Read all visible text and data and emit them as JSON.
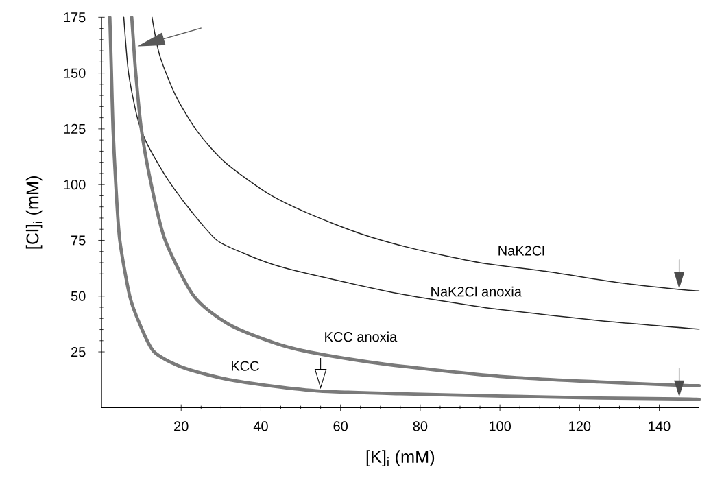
{
  "chart_data": {
    "type": "line",
    "xlabel": "[K]$_{i}$ (mM)",
    "ylabel": "[Cl]$_{i}$ (mM)",
    "xlim": [
      0,
      150
    ],
    "ylim": [
      0,
      175
    ],
    "xticks": [
      20,
      40,
      60,
      80,
      100,
      120,
      140
    ],
    "yticks": [
      25,
      50,
      75,
      100,
      125,
      150,
      175
    ],
    "series": [
      {
        "name": "NaK2Cl",
        "color": "#222222",
        "x": [
          12.7,
          14.6,
          18.6,
          24,
          31,
          41.8,
          52,
          65,
          77.8,
          95,
          112,
          130,
          145,
          150
        ],
        "values": [
          175,
          158,
          140,
          124,
          110,
          96,
          87,
          78,
          71.5,
          65,
          61,
          56,
          53,
          52.3
        ]
      },
      {
        "name": "NaK2Cl anoxia",
        "color": "#222222",
        "x": [
          5.6,
          6.8,
          9,
          11,
          14,
          17.5,
          23,
          29,
          36,
          43.4,
          52,
          75,
          94,
          100,
          125,
          150
        ],
        "values": [
          175,
          150,
          130,
          120,
          110,
          100,
          87,
          75,
          69,
          64,
          60,
          51,
          45.5,
          44,
          39,
          35.2
        ]
      },
      {
        "name": "KCC anoxia",
        "color": "#7a7a7a",
        "x": [
          7.6,
          8.1,
          8.6,
          10,
          12.5,
          16,
          23.2,
          31.8,
          43.4,
          52,
          71,
          100,
          125,
          145,
          150
        ],
        "values": [
          175,
          162,
          150,
          125,
          100,
          75,
          50,
          37.5,
          29,
          25,
          19.5,
          14,
          11.5,
          10,
          9.8
        ]
      },
      {
        "name": "KCC",
        "color": "#7a7a7a",
        "x": [
          2.1,
          2.5,
          2.9,
          3.6,
          4.6,
          7.1,
          9.6,
          13.2,
          20.4,
          31,
          43.4,
          55,
          75,
          99,
          125,
          145,
          150
        ],
        "values": [
          175,
          150,
          125,
          100,
          75,
          50,
          37.5,
          25,
          18,
          12.9,
          9.5,
          7.4,
          6.2,
          5.2,
          4.3,
          3.9,
          3.7
        ]
      }
    ]
  }
}
